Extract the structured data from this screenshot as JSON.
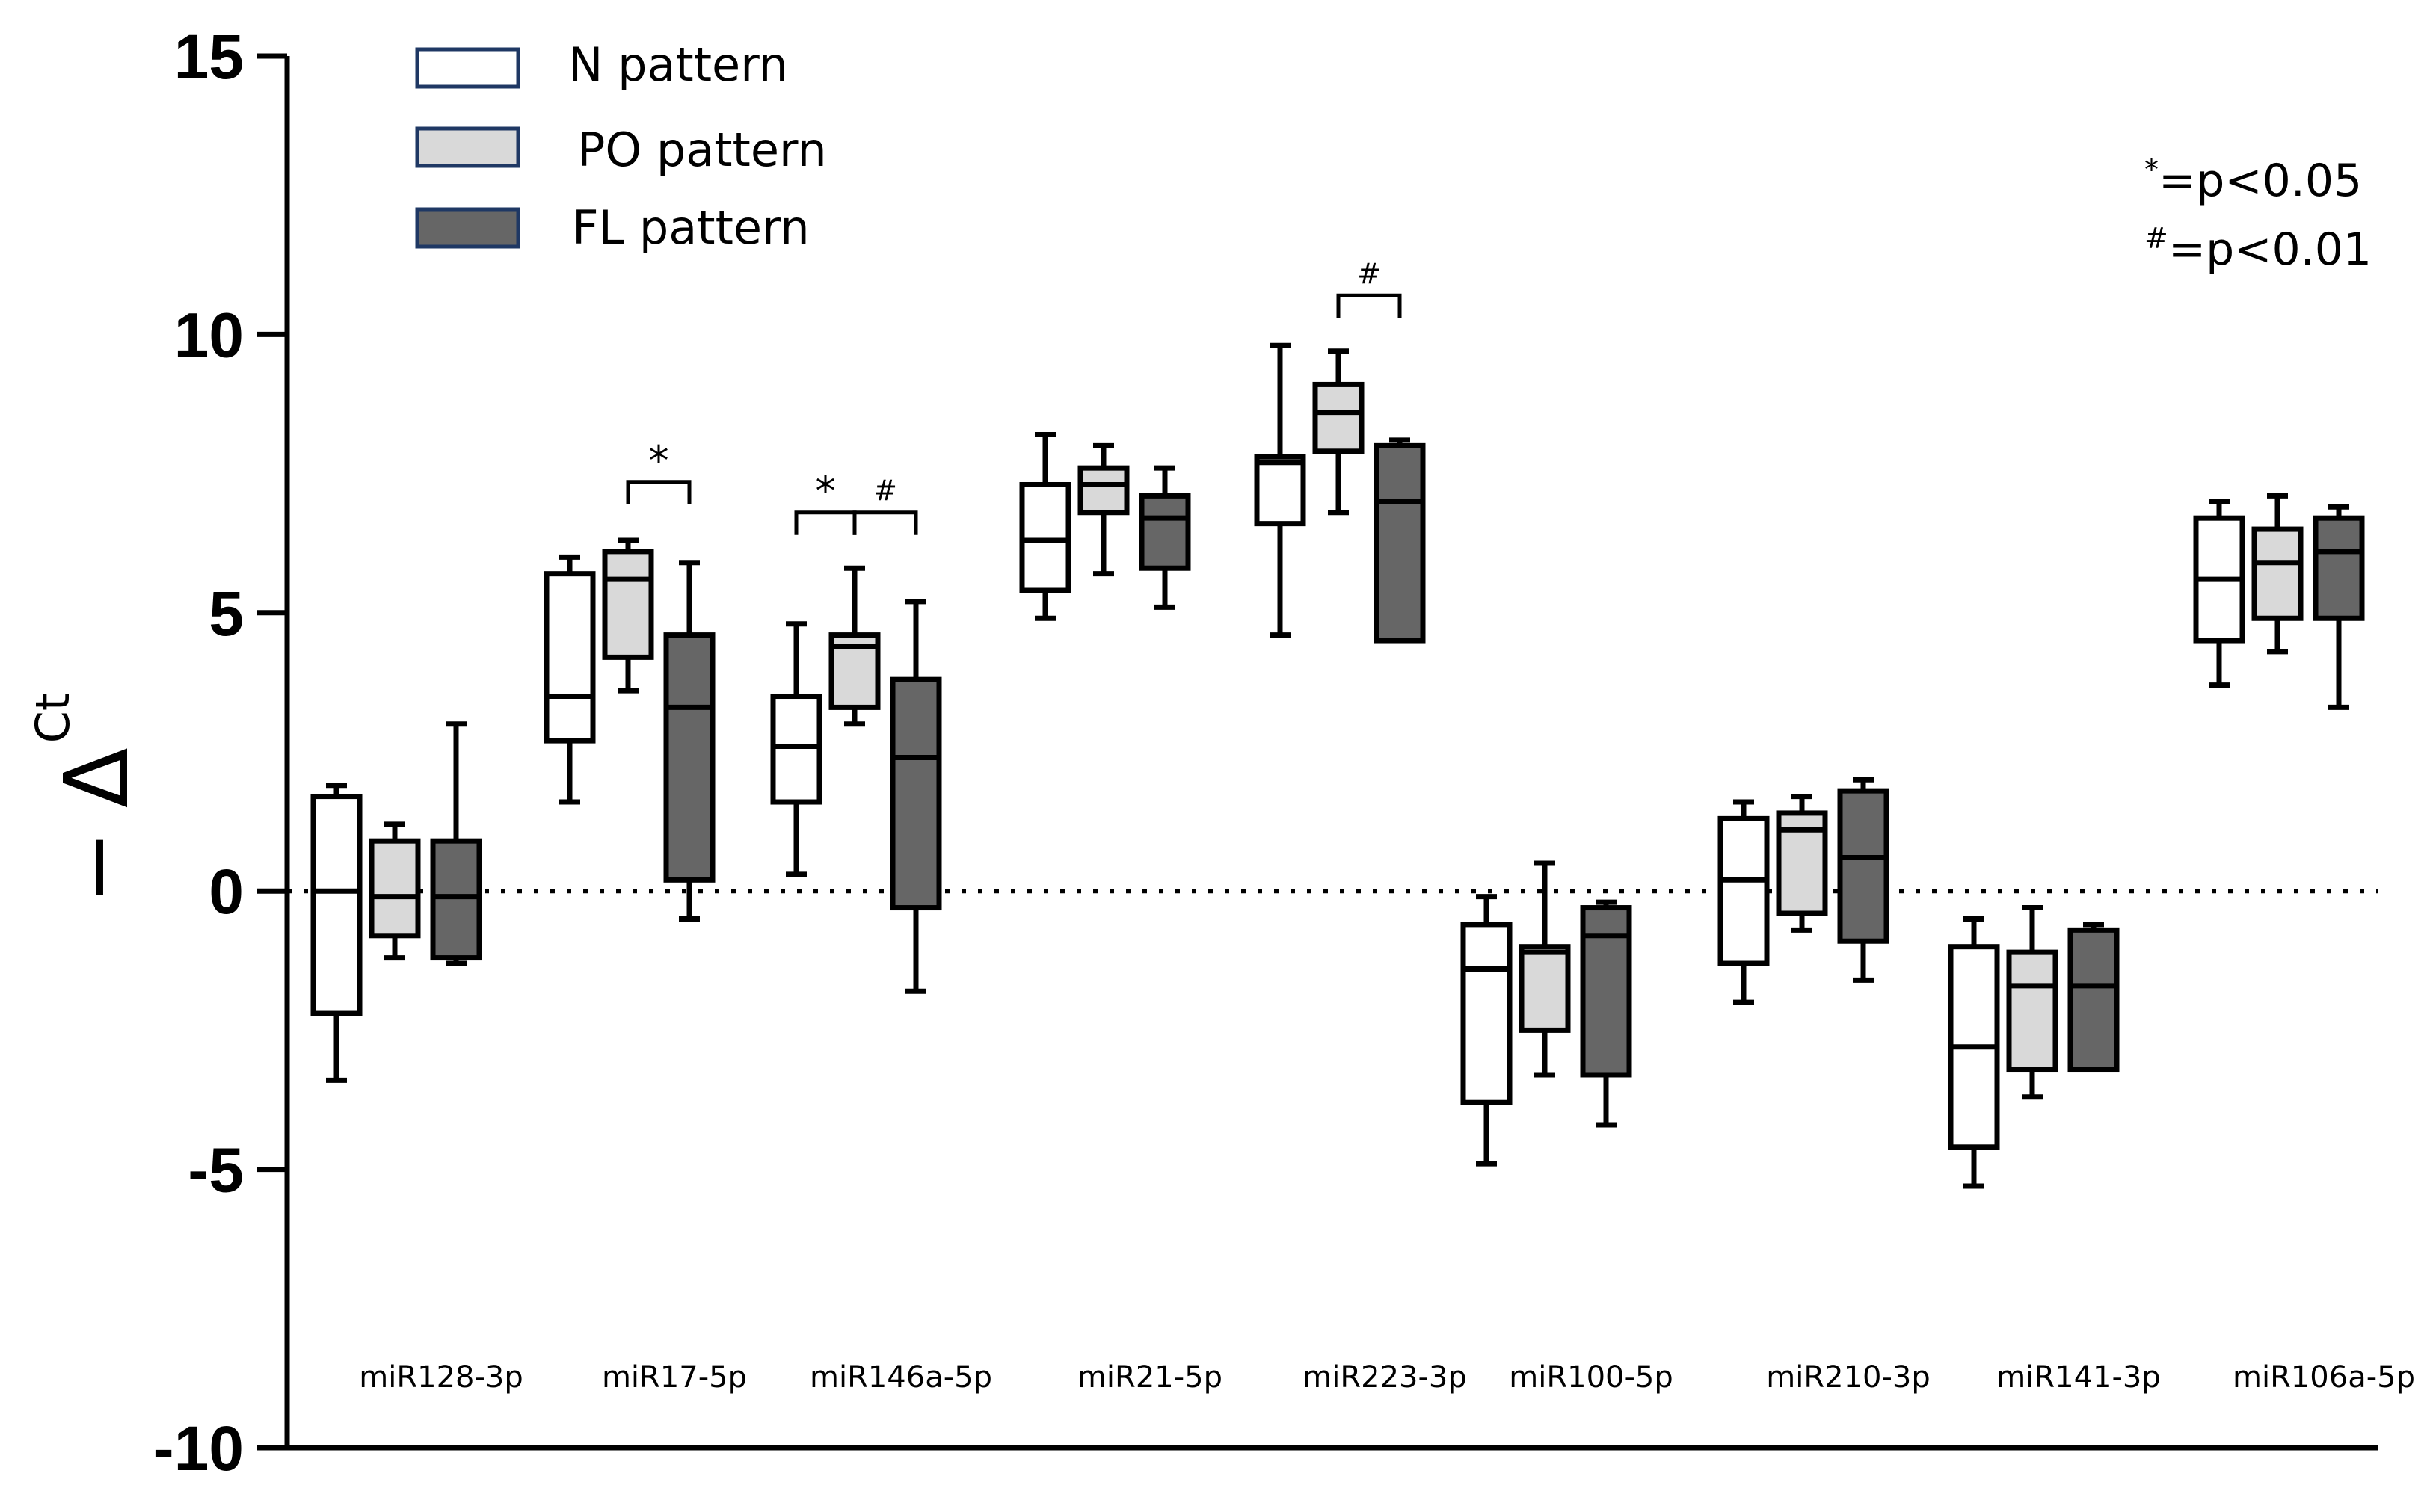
{
  "chart_data": {
    "type": "box",
    "ylabel": {
      "prefix": "−",
      "delta": "Δ",
      "sup": "Ct"
    },
    "ylim": [
      -10,
      15
    ],
    "yticks": [
      {
        "value": 15,
        "label": "15"
      },
      {
        "value": 10,
        "label": "10"
      },
      {
        "value": 5,
        "label": "5"
      },
      {
        "value": 0,
        "label": "0"
      },
      {
        "value": -5,
        "label": "-5"
      },
      {
        "value": -10,
        "label": "-10"
      }
    ],
    "reference_line": {
      "value": 0,
      "style": "dotted"
    },
    "categories": [
      "miR128-3p",
      "miR17-5p",
      "miR146a-5p",
      "miR21-5p",
      "miR223-3p",
      "miR100-5p",
      "miR210-3p",
      "miR141-3p",
      "miR106a-5p"
    ],
    "series": [
      {
        "name": "N pattern",
        "fill": "#ffffff",
        "boxes": [
          {
            "min": -3.4,
            "q1": -2.2,
            "median": 0.0,
            "q3": 1.7,
            "max": 1.9
          },
          {
            "min": 1.6,
            "q1": 2.7,
            "median": 3.5,
            "q3": 5.7,
            "max": 6.0
          },
          {
            "min": 0.3,
            "q1": 1.6,
            "median": 2.6,
            "q3": 3.5,
            "max": 4.8
          },
          {
            "min": 4.9,
            "q1": 5.4,
            "median": 6.3,
            "q3": 7.3,
            "max": 8.2
          },
          {
            "min": 4.6,
            "q1": 6.6,
            "median": 7.7,
            "q3": 7.8,
            "max": 9.8
          },
          {
            "min": -4.9,
            "q1": -3.8,
            "median": -1.4,
            "q3": -0.6,
            "max": -0.1
          },
          {
            "min": -2.0,
            "q1": -1.3,
            "median": 0.2,
            "q3": 1.3,
            "max": 1.6
          },
          {
            "min": -5.3,
            "q1": -4.6,
            "median": -2.8,
            "q3": -1.0,
            "max": -0.5
          },
          {
            "min": 3.7,
            "q1": 4.5,
            "median": 5.6,
            "q3": 6.7,
            "max": 7.0
          }
        ]
      },
      {
        "name": "PO pattern",
        "fill": "#d9d9d9",
        "boxes": [
          {
            "min": -1.2,
            "q1": -0.8,
            "median": -0.1,
            "q3": 0.9,
            "max": 1.2
          },
          {
            "min": 3.6,
            "q1": 4.2,
            "median": 5.6,
            "q3": 6.1,
            "max": 6.3
          },
          {
            "min": 3.0,
            "q1": 3.3,
            "median": 4.4,
            "q3": 4.6,
            "max": 5.8
          },
          {
            "min": 5.7,
            "q1": 6.8,
            "median": 7.3,
            "q3": 7.6,
            "max": 8.0
          },
          {
            "min": 6.8,
            "q1": 7.9,
            "median": 8.6,
            "q3": 9.1,
            "max": 9.7
          },
          {
            "min": -3.3,
            "q1": -2.5,
            "median": -1.1,
            "q3": -1.0,
            "max": 0.5
          },
          {
            "min": -0.7,
            "q1": -0.4,
            "median": 1.1,
            "q3": 1.4,
            "max": 1.7
          },
          {
            "min": -3.7,
            "q1": -3.2,
            "median": -1.7,
            "q3": -1.1,
            "max": -0.3
          },
          {
            "min": 4.3,
            "q1": 4.9,
            "median": 5.9,
            "q3": 6.5,
            "max": 7.1
          }
        ]
      },
      {
        "name": "FL pattern",
        "fill": "#666666",
        "boxes": [
          {
            "min": -1.3,
            "q1": -1.2,
            "median": -0.1,
            "q3": 0.9,
            "max": 3.0
          },
          {
            "min": -0.5,
            "q1": 0.2,
            "median": 3.3,
            "q3": 4.6,
            "max": 5.9
          },
          {
            "min": -1.8,
            "q1": -0.3,
            "median": 2.4,
            "q3": 3.8,
            "max": 5.2
          },
          {
            "min": 5.1,
            "q1": 5.8,
            "median": 6.7,
            "q3": 7.1,
            "max": 7.6
          },
          {
            "min": 4.5,
            "q1": 4.5,
            "median": 7.0,
            "q3": 8.0,
            "max": 8.1
          },
          {
            "min": -4.2,
            "q1": -3.3,
            "median": -0.8,
            "q3": -0.3,
            "max": -0.2
          },
          {
            "min": -1.6,
            "q1": -0.9,
            "median": 0.6,
            "q3": 1.8,
            "max": 2.0
          },
          {
            "min": -3.2,
            "q1": -3.2,
            "median": -1.7,
            "q3": -0.7,
            "max": -0.6
          },
          {
            "min": 3.3,
            "q1": 4.9,
            "median": 6.1,
            "q3": 6.7,
            "max": 6.9
          }
        ]
      }
    ],
    "significance": [
      {
        "category": "miR17-5p",
        "from": "PO pattern",
        "to": "FL pattern",
        "symbol": "*"
      },
      {
        "category": "miR146a-5p",
        "from": "N pattern",
        "to": "PO pattern",
        "symbol": "*"
      },
      {
        "category": "miR146a-5p",
        "from": "PO pattern",
        "to": "FL pattern",
        "symbol": "#"
      },
      {
        "category": "miR223-3p",
        "from": "PO pattern",
        "to": "FL pattern",
        "symbol": "#"
      }
    ],
    "legend": [
      {
        "label": "N pattern",
        "fill": "#ffffff",
        "border": "#1f3864"
      },
      {
        "label": "PO pattern",
        "fill": "#d9d9d9",
        "border": "#1f3864"
      },
      {
        "label": "FL pattern",
        "fill": "#666666",
        "border": "#1f3864"
      }
    ],
    "notes": [
      {
        "sup": "*",
        "text": "=p<0.05"
      },
      {
        "sup": "#",
        "text": "=p<0.01"
      }
    ]
  }
}
